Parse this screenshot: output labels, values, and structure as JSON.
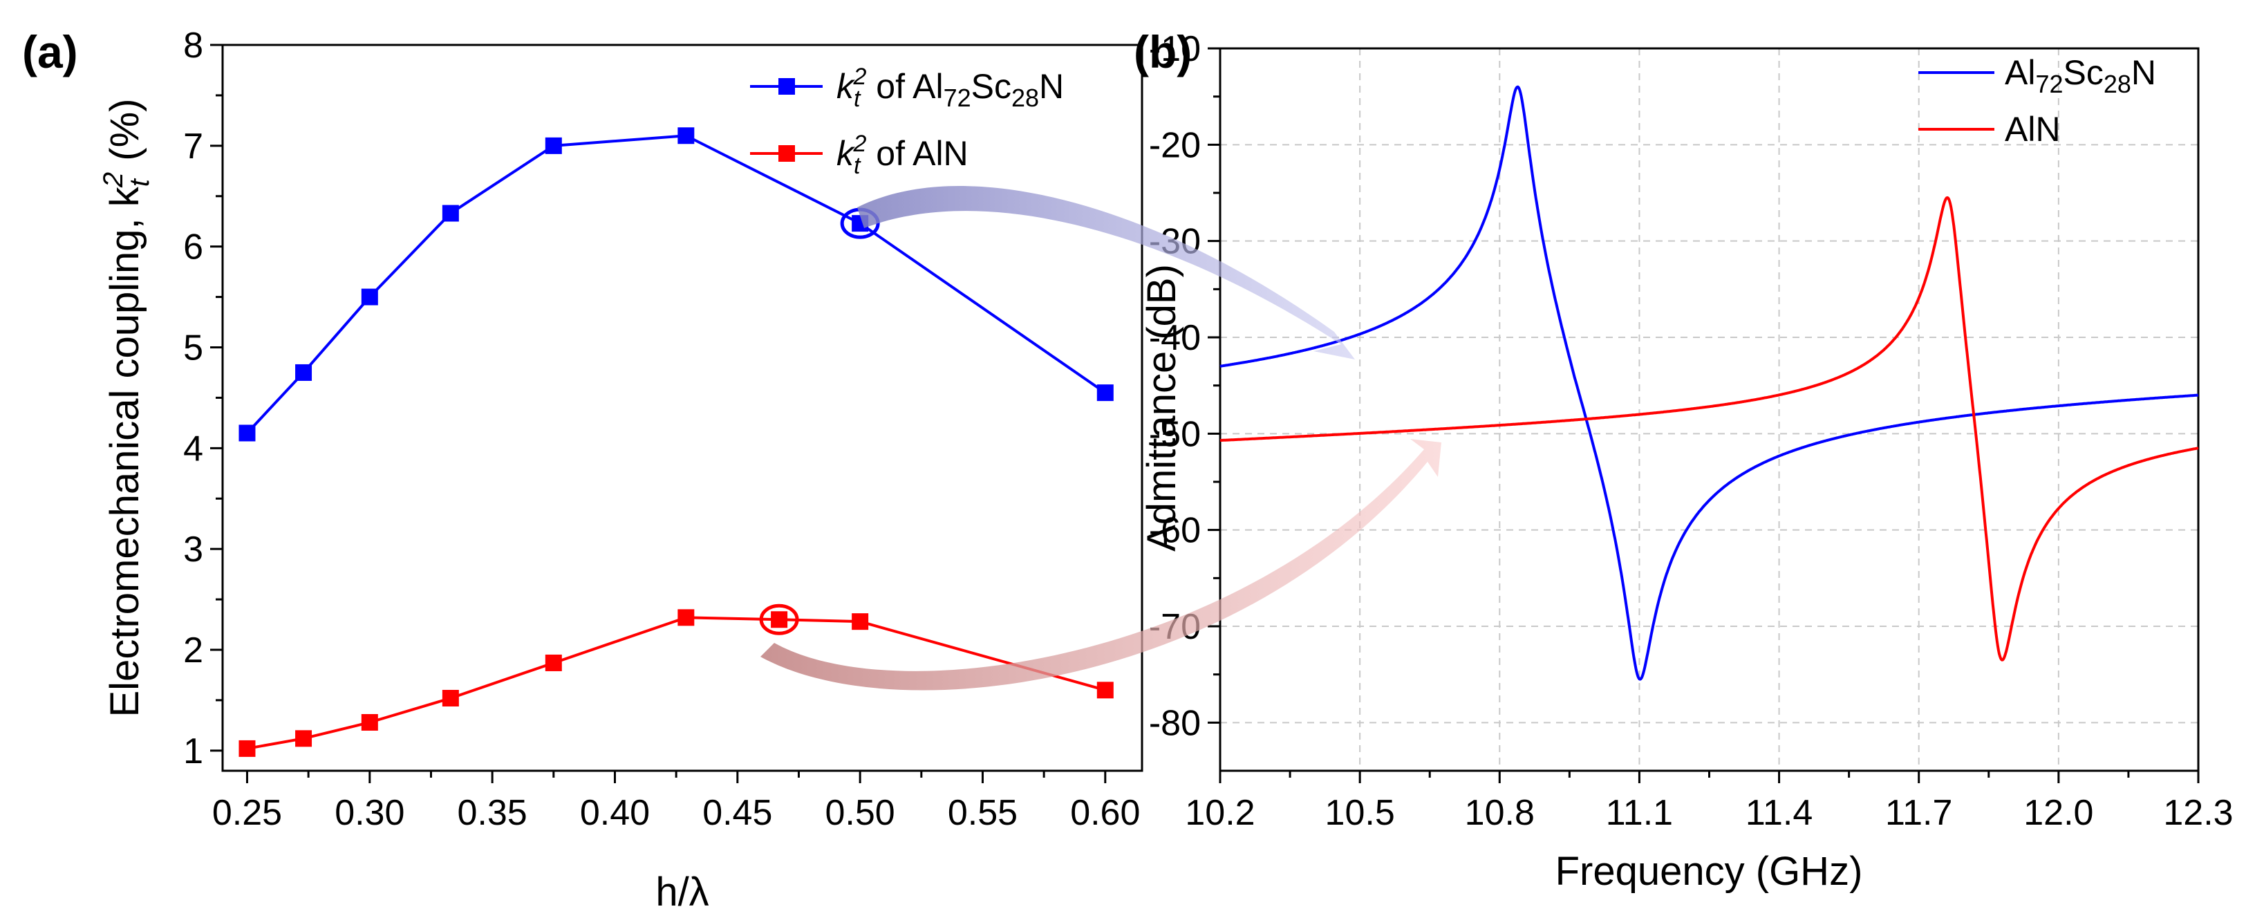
{
  "chart_data": [
    {
      "panel": "(a)",
      "type": "line",
      "title": "",
      "xlabel": "h/λ",
      "ylabel": "Electromechanical coupling, k",
      "ylabel_sub": "t",
      "ylabel_sup": "2",
      "ylabel_unit": " (%)",
      "xlim": [
        0.24,
        0.615
      ],
      "ylim": [
        0.8,
        8
      ],
      "xticks": [
        "0.25",
        "0.30",
        "0.35",
        "0.40",
        "0.45",
        "0.50",
        "0.55",
        "0.60"
      ],
      "xtick_values": [
        0.25,
        0.3,
        0.35,
        0.4,
        0.45,
        0.5,
        0.55,
        0.6
      ],
      "yticks": [
        "1",
        "2",
        "3",
        "4",
        "5",
        "6",
        "7",
        "8"
      ],
      "ytick_values": [
        1,
        2,
        3,
        4,
        5,
        6,
        7,
        8
      ],
      "legend_position": "top-right",
      "series": [
        {
          "name": "k_t^2 of Al72Sc28N",
          "legend_k": "k",
          "legend_sub": "t",
          "legend_sup": "2",
          "legend_pre": " of Al",
          "legend_s1": "72",
          "legend_mid": "Sc",
          "legend_s2": "28",
          "legend_post": "N",
          "color": "#0000ff",
          "x": [
            0.25,
            0.273,
            0.3,
            0.333,
            0.375,
            0.429,
            0.5,
            0.6
          ],
          "y": [
            4.15,
            4.75,
            5.5,
            6.33,
            7.0,
            7.1,
            6.23,
            4.55
          ],
          "highlight_x": 0.5,
          "highlight_y": 6.23
        },
        {
          "name": "k_t^2 of AlN",
          "legend_k": "k",
          "legend_sub": "t",
          "legend_sup": "2",
          "legend_pre": " of AlN",
          "legend_s1": "",
          "legend_mid": "",
          "legend_s2": "",
          "legend_post": "",
          "color": "#ff0000",
          "x": [
            0.25,
            0.273,
            0.3,
            0.333,
            0.375,
            0.429,
            0.467,
            0.5,
            0.6
          ],
          "y": [
            1.02,
            1.12,
            1.28,
            1.52,
            1.87,
            2.32,
            2.3,
            2.28,
            1.6
          ],
          "highlight_x": 0.467,
          "highlight_y": 2.3
        }
      ]
    },
    {
      "panel": "(b)",
      "type": "line",
      "title": "",
      "xlabel": "Frequency (GHz)",
      "ylabel": "Admittance (dB)",
      "xlim": [
        10.2,
        12.3
      ],
      "ylim": [
        -85,
        -10
      ],
      "xticks": [
        "10.2",
        "10.5",
        "10.8",
        "11.1",
        "11.4",
        "11.7",
        "12.0",
        "12.3"
      ],
      "xtick_values": [
        10.2,
        10.5,
        10.8,
        11.1,
        11.4,
        11.7,
        12.0,
        12.3
      ],
      "yticks": [
        "-10",
        "-20",
        "-30",
        "-40",
        "-50",
        "-60",
        "-70",
        "-80"
      ],
      "ytick_values": [
        -10,
        -20,
        -30,
        -40,
        -50,
        -60,
        -70,
        -80
      ],
      "legend_position": "top-right",
      "series": [
        {
          "name": "Al72Sc28N",
          "legend_pre": "Al",
          "legend_s1": "72",
          "legend_mid": "Sc",
          "legend_s2": "28",
          "legend_post": "N",
          "color": "#0000ff",
          "resonance_GHz": 10.84,
          "antiresonance_GHz": 11.1,
          "peak_dB": -14,
          "notch_dB": -75.5,
          "start_dB": -43,
          "end_dB": -46
        },
        {
          "name": "AlN",
          "legend_pre": "AlN",
          "legend_s1": "",
          "legend_mid": "",
          "legend_s2": "",
          "legend_post": "",
          "color": "#ff0000",
          "resonance_GHz": 11.765,
          "antiresonance_GHz": 11.875,
          "peak_dB": -25.5,
          "notch_dB": -73.5,
          "start_dB": -50.7,
          "end_dB": -51.5
        }
      ]
    }
  ]
}
